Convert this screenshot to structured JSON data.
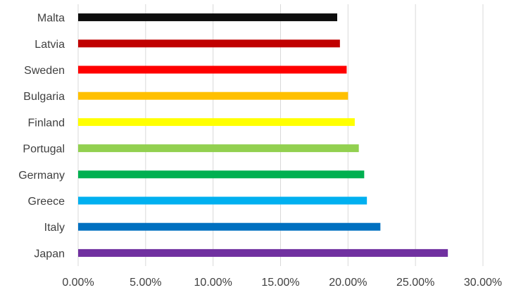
{
  "chart_data": {
    "type": "bar",
    "orientation": "horizontal",
    "title": "",
    "xlabel": "",
    "ylabel": "",
    "categories": [
      "Malta",
      "Latvia",
      "Sweden",
      "Bulgaria",
      "Finland",
      "Portugal",
      "Germany",
      "Greece",
      "Italy",
      "Japan"
    ],
    "values": [
      0.192,
      0.194,
      0.199,
      0.2,
      0.205,
      0.208,
      0.212,
      0.214,
      0.224,
      0.274
    ],
    "colors": [
      "#0d0d0d",
      "#c00000",
      "#ff0000",
      "#ffc000",
      "#ffff00",
      "#92d050",
      "#00b050",
      "#00b0f0",
      "#0070c0",
      "#7030a0"
    ],
    "xlim": [
      0,
      0.3
    ],
    "x_ticks": [
      0,
      0.05,
      0.1,
      0.15,
      0.2,
      0.25,
      0.3
    ],
    "x_tick_labels": [
      "0.00%",
      "5.00%",
      "10.00%",
      "15.00%",
      "20.00%",
      "25.00%",
      "30.00%"
    ],
    "grid": true,
    "legend": "none"
  }
}
